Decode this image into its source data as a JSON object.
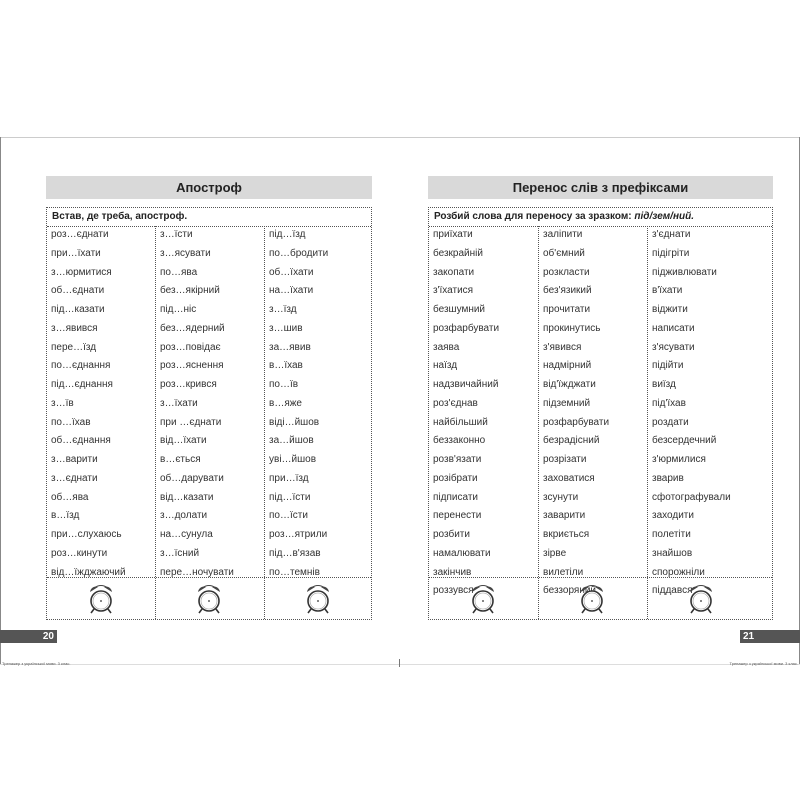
{
  "left_page": {
    "title": "Апостроф",
    "instruction": "Встав, де треба, апостроф.",
    "columns": [
      [
        "роз…єднати",
        "при…їхати",
        "з…юрмитися",
        "об…єднати",
        "під…казати",
        "з…явився",
        "пере…їзд",
        "по…єднання",
        "під…єднання",
        "з…їв",
        "по…їхав",
        "об…єднання",
        "з…варити",
        "з…єднати",
        "об…ява",
        "в…їзд",
        "при…слухаюсь",
        "роз…кинути",
        "від…їжджаючий"
      ],
      [
        "з…їсти",
        "з…ясувати",
        "по…ява",
        "без…якірний",
        "під…ніс",
        "без…ядерний",
        "роз…повідає",
        "роз…яснення",
        "роз…крився",
        "з…їхати",
        "при …єднати",
        "від…їхати",
        "в…ється",
        "об…дарувати",
        "від…казати",
        "з…долати",
        "на…сунула",
        "з…їсний",
        "пере…ночувати"
      ],
      [
        "під…їзд",
        "по…бродити",
        "об…їхати",
        "на…їхати",
        "з…їзд",
        "з…шив",
        "за…явив",
        "в…їхав",
        "по…їв",
        "в…яже",
        "віді…йшов",
        "за…йшов",
        "уві…йшов",
        "при…їзд",
        "під…їсти",
        "по…їсти",
        "роз…ятрили",
        "під…в'язав",
        "по…темнів"
      ]
    ],
    "page_number": "20",
    "footer": "Тренажер з української мови. 3 клас."
  },
  "right_page": {
    "title": "Перенос слів з префіксами",
    "instruction": "Розбий слова для переносу за зразком:",
    "example": "під/зем/ний.",
    "columns": [
      [
        "приїхати",
        "безкрайній",
        "закопати",
        "з'їхатися",
        "безшумний",
        "розфарбувати",
        "заява",
        "наїзд",
        "надзвичайний",
        "роз'єднав",
        "найбільший",
        "беззаконно",
        "розв'язати",
        "розібрати",
        "підписати",
        "перенести",
        "розбити",
        "намалювати",
        "закінчив",
        "роззувся"
      ],
      [
        "заліпити",
        "об'ємний",
        "розкласти",
        "без'язикий",
        "прочитати",
        "прокинутись",
        "з'явився",
        "надмірний",
        "від'їжджати",
        "підземний",
        "розфарбувати",
        "безрадісний",
        "розрізати",
        "заховатися",
        "зсунути",
        "заварити",
        "вкриється",
        "зірве",
        "вилетіли",
        "беззоряний"
      ],
      [
        "з'єднати",
        "підігріти",
        "підживлювати",
        "в'їхати",
        "віджити",
        "написати",
        "з'ясувати",
        "підійти",
        "виїзд",
        "під'їхав",
        "роздати",
        "безсердечний",
        "з'юрмилися",
        "зварив",
        "сфотографували",
        "заходити",
        "полетіти",
        "знайшов",
        "спорожніли",
        "піддався"
      ]
    ],
    "page_number": "21",
    "footer": "Тренажер з української мови. 3 клас."
  },
  "colors": {
    "header_bg": "#d9d9d9",
    "page_number_bg": "#555555"
  },
  "icons": {
    "timer": "alarm-clock-icon"
  }
}
